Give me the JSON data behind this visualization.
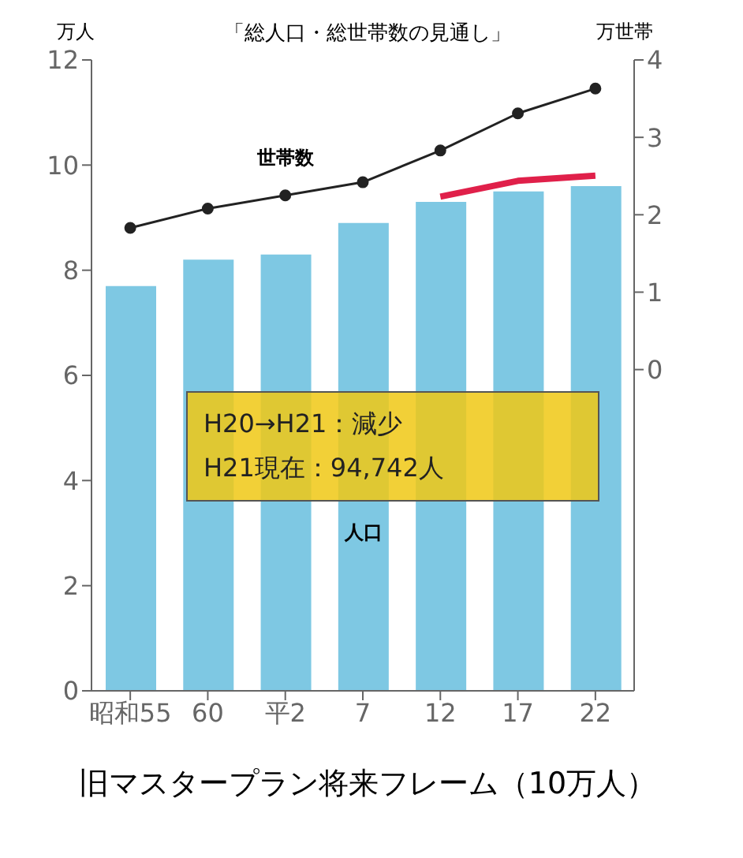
{
  "chart_data": {
    "type": "bar",
    "title": "「総人口・総世帯数の見通し」",
    "ylabel": "万人",
    "y2label": "万世帯",
    "categories": [
      "昭和55",
      "60",
      "平2",
      "7",
      "12",
      "17",
      "22"
    ],
    "series": [
      {
        "name": "人口",
        "color": "#7ec8e3",
        "values": [
          7.7,
          8.2,
          8.3,
          8.9,
          9.3,
          9.5,
          9.6
        ]
      },
      {
        "type": "line",
        "color": "#e0204a",
        "values": [
          null,
          null,
          null,
          null,
          9.4,
          9.7,
          9.8
        ]
      },
      {
        "name": "世帯数",
        "type": "line",
        "axis": "y2",
        "marker": "circle",
        "color": "#222222",
        "values": [
          1.83,
          2.08,
          2.25,
          2.42,
          2.83,
          3.31,
          3.63
        ]
      }
    ],
    "ylim": [
      0,
      12
    ],
    "yticks": [
      0,
      2,
      4,
      6,
      8,
      10,
      12
    ],
    "y2lim": [
      -4.15,
      4
    ],
    "y2ticks": [
      0,
      1,
      2,
      3,
      4
    ],
    "annotations": [
      "H20→H21：減少",
      "H21現在：94,742人",
      "旧マスタープラン将来フレーム（10万人）"
    ]
  }
}
